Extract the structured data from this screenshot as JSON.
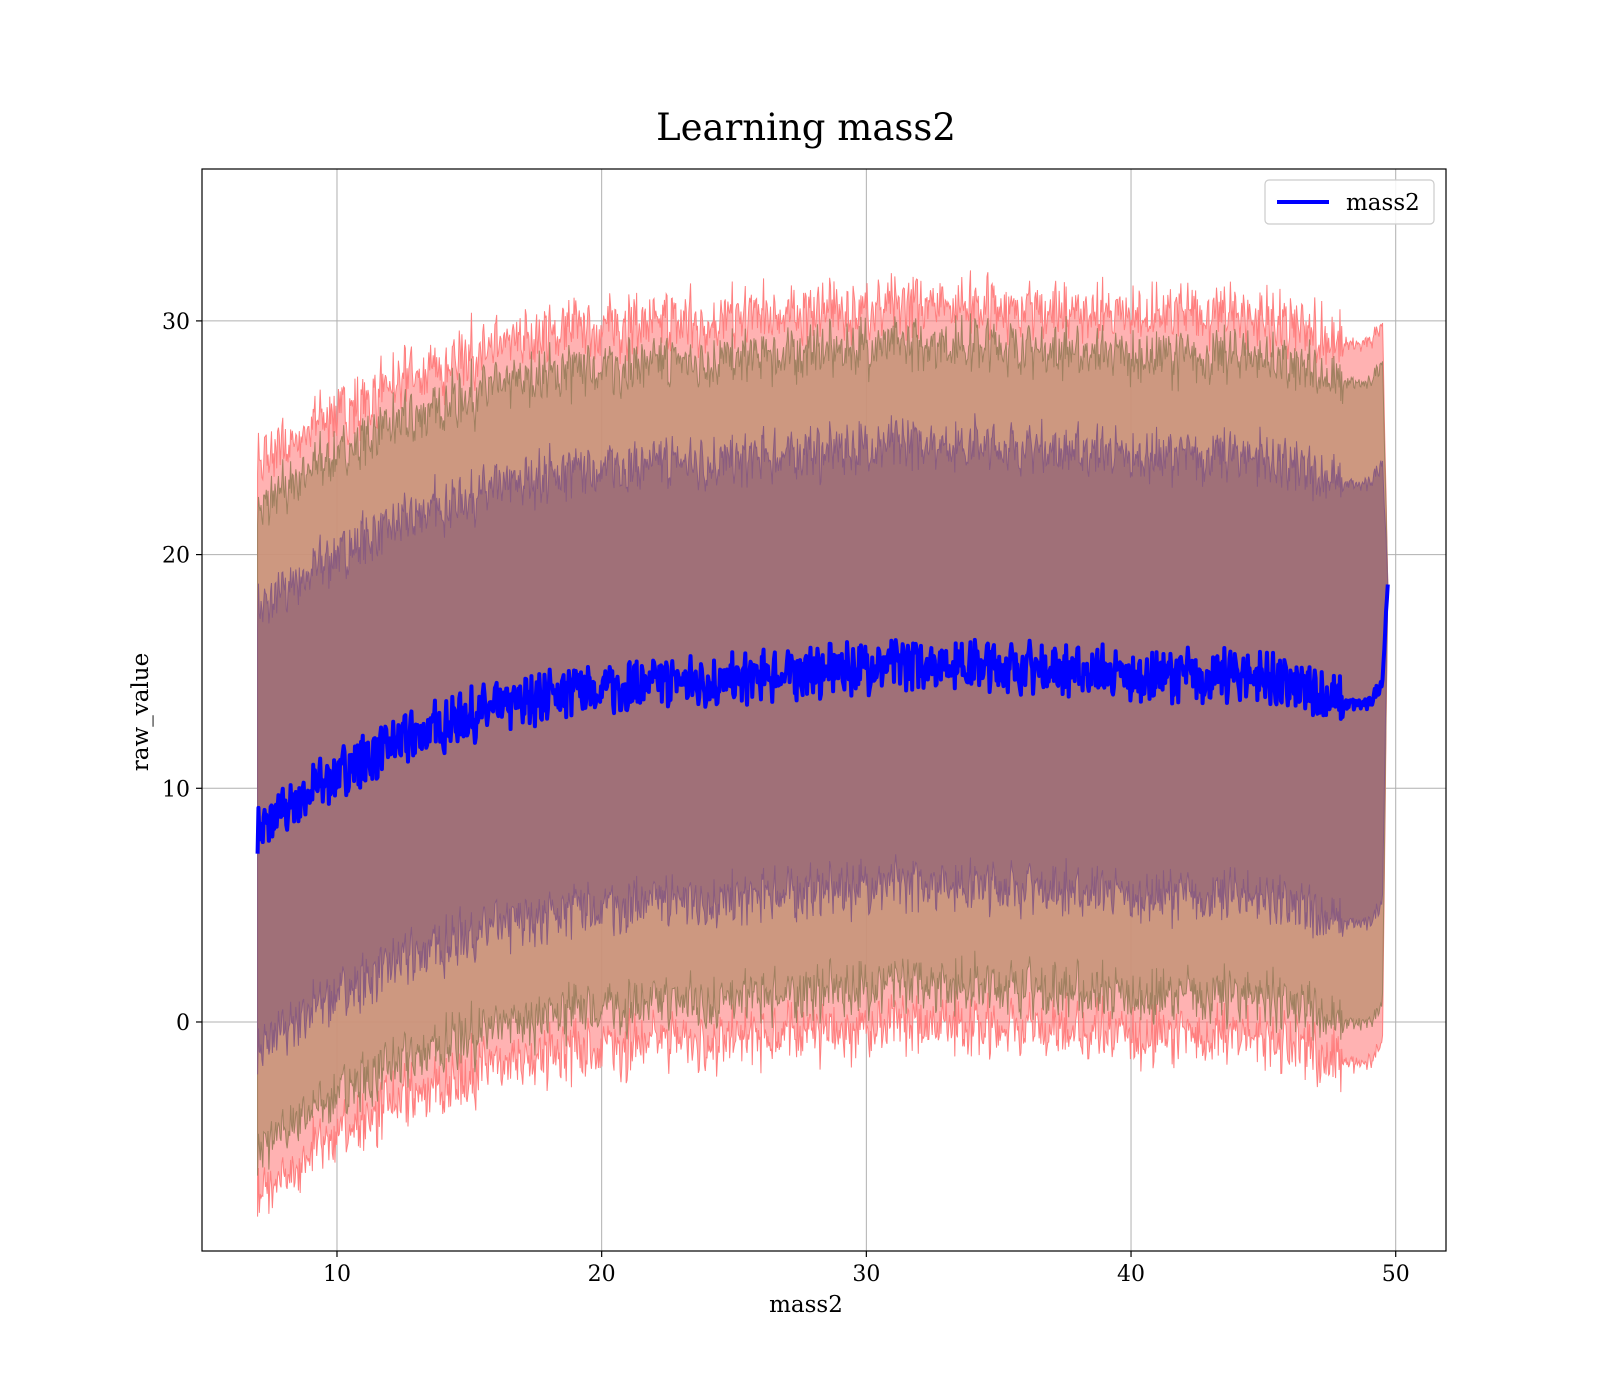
{
  "chart_data": {
    "type": "line",
    "title": "Learning mass2",
    "xlabel": "mass2",
    "ylabel": "raw_value",
    "xlim": [
      4.9,
      51.9
    ],
    "ylim": [
      -9.8,
      36.5
    ],
    "grid": true,
    "legend": {
      "placement": "top-right",
      "entries": [
        "mass2"
      ]
    },
    "x_ticks": [
      10,
      20,
      30,
      40,
      50
    ],
    "y_ticks": [
      0,
      10,
      20,
      30
    ],
    "colors": {
      "line": "#0000ff",
      "band_3sigma": "#ff7f7f",
      "band_2sigma": "#c8957a",
      "band_1sigma": "#a07078",
      "grid": "#b0b0b0"
    },
    "series": [
      {
        "name": "mass2",
        "x": [
          7.0,
          8.0,
          9.0,
          10.0,
          11.0,
          12.0,
          13.0,
          14.0,
          15.0,
          16.0,
          17.0,
          18.0,
          19.0,
          20.0,
          21.0,
          22.0,
          23.0,
          24.0,
          25.0,
          26.0,
          27.0,
          28.0,
          29.0,
          30.0,
          31.0,
          32.0,
          33.0,
          34.0,
          35.0,
          36.0,
          37.0,
          38.0,
          39.0,
          40.0,
          41.0,
          42.0,
          43.0,
          44.0,
          45.0,
          46.0,
          47.0,
          48.0,
          49.0,
          49.5,
          49.7
        ],
        "y": [
          8.1,
          9.0,
          9.9,
          10.6,
          11.2,
          11.8,
          12.3,
          12.7,
          13.1,
          13.4,
          13.7,
          14.0,
          14.2,
          14.3,
          14.4,
          14.5,
          14.6,
          14.5,
          14.6,
          14.8,
          14.9,
          15.0,
          15.1,
          15.2,
          15.3,
          15.4,
          15.4,
          15.3,
          15.2,
          15.2,
          15.1,
          15.0,
          15.0,
          14.6,
          14.8,
          14.9,
          14.7,
          14.9,
          14.8,
          14.3,
          14.1,
          13.6,
          13.6,
          14.6,
          18.9
        ],
        "band_1sigma_half_width": [
          9.4,
          9.4,
          9.4,
          9.4,
          9.4,
          9.4,
          9.4,
          9.4,
          9.4,
          9.4,
          9.4,
          9.4,
          9.4,
          9.4,
          9.4,
          9.4,
          9.4,
          9.4,
          9.4,
          9.4,
          9.4,
          9.4,
          9.4,
          9.4,
          9.4,
          9.4,
          9.4,
          9.4,
          9.4,
          9.4,
          9.4,
          9.4,
          9.4,
          9.4,
          9.4,
          9.4,
          9.4,
          9.4,
          9.4,
          9.4,
          9.4,
          9.4,
          9.4,
          9.4,
          0.0
        ],
        "band_2sigma_half_width": [
          13.7,
          13.7,
          13.7,
          13.7,
          13.7,
          13.7,
          13.7,
          13.7,
          13.7,
          13.7,
          13.7,
          13.7,
          13.7,
          13.7,
          13.7,
          13.7,
          13.7,
          13.7,
          13.7,
          13.7,
          13.7,
          13.7,
          13.7,
          13.7,
          13.7,
          13.7,
          13.7,
          13.7,
          13.7,
          13.7,
          13.7,
          13.7,
          13.7,
          13.7,
          13.7,
          13.7,
          13.7,
          13.7,
          13.7,
          13.7,
          13.7,
          13.7,
          13.7,
          13.7,
          0.0
        ],
        "band_3sigma_half_width": [
          15.7,
          15.6,
          15.5,
          15.4,
          15.4,
          15.4,
          15.4,
          15.4,
          15.4,
          15.4,
          15.4,
          15.4,
          15.4,
          15.4,
          15.4,
          15.4,
          15.4,
          15.4,
          15.4,
          15.4,
          15.4,
          15.4,
          15.4,
          15.4,
          15.4,
          15.4,
          15.4,
          15.4,
          15.4,
          15.4,
          15.4,
          15.4,
          15.4,
          15.4,
          15.4,
          15.4,
          15.4,
          15.4,
          15.4,
          15.4,
          15.4,
          15.4,
          15.4,
          15.4,
          0.0
        ]
      }
    ]
  }
}
